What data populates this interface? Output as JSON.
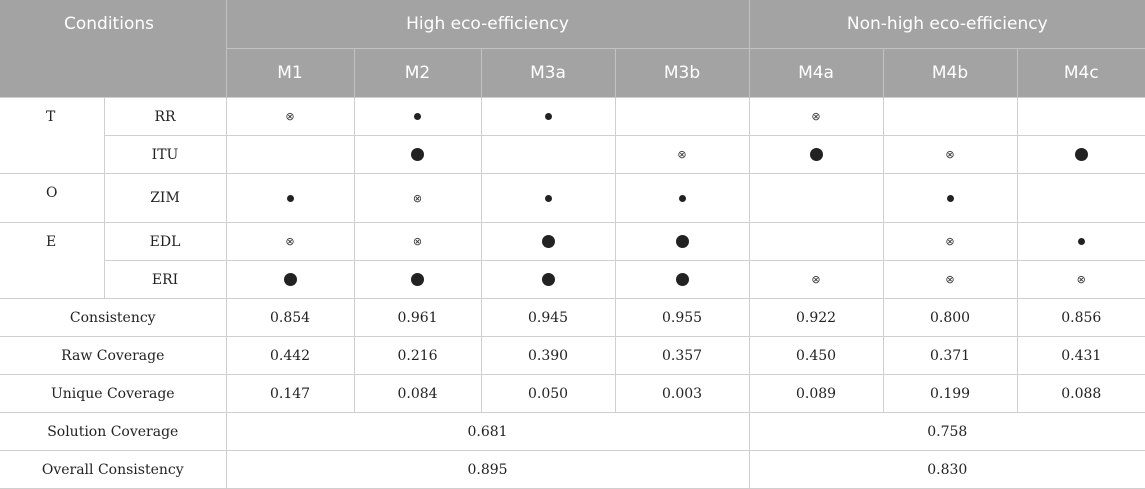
{
  "header": {
    "conditions_label": "Conditions",
    "group_high": "High eco-efficiency",
    "group_non_high": "Non-high eco-efficiency",
    "models": [
      "M1",
      "M2",
      "M3a",
      "M3b",
      "M4a",
      "M4b",
      "M4c"
    ]
  },
  "legend": {
    "absent": "⊗"
  },
  "condition_rows": [
    {
      "group": "T",
      "name": "RR",
      "cells": [
        "absent",
        "core_small",
        "core_small",
        "",
        "absent",
        "",
        ""
      ]
    },
    {
      "group": "",
      "name": "ITU",
      "cells": [
        "",
        "core_large",
        "",
        "absent",
        "core_large",
        "absent",
        "core_large"
      ]
    },
    {
      "group": "O",
      "name": "ZIM",
      "cells": [
        "core_small",
        "absent",
        "core_small",
        "core_small",
        "",
        "core_small",
        ""
      ]
    },
    {
      "group": "E",
      "name": "EDL",
      "cells": [
        "absent",
        "absent",
        "core_large",
        "core_large",
        "",
        "absent",
        "core_small"
      ]
    },
    {
      "group": "",
      "name": "ERI",
      "cells": [
        "core_large",
        "core_large",
        "core_large",
        "core_large",
        "absent",
        "absent",
        "absent"
      ]
    }
  ],
  "groups": {
    "t": "T",
    "o": "O",
    "e": "E"
  },
  "metric_rows": [
    {
      "label": "Consistency",
      "values": [
        "0.854",
        "0.961",
        "0.945",
        "0.955",
        "0.922",
        "0.800",
        "0.856"
      ]
    },
    {
      "label": "Raw Coverage",
      "values": [
        "0.442",
        "0.216",
        "0.390",
        "0.357",
        "0.450",
        "0.371",
        "0.431"
      ]
    },
    {
      "label": "Unique Coverage",
      "values": [
        "0.147",
        "0.084",
        "0.050",
        "0.003",
        "0.089",
        "0.199",
        "0.088"
      ]
    }
  ],
  "summary_rows": [
    {
      "label": "Solution Coverage",
      "high": "0.681",
      "non_high": "0.758"
    },
    {
      "label": "Overall Consistency",
      "high": "0.895",
      "non_high": "0.830"
    }
  ]
}
